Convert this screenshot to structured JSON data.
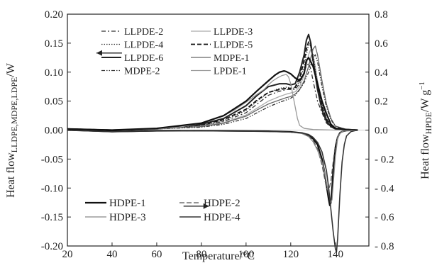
{
  "chart_data": {
    "type": "line",
    "xlabel": "Temperature/°C",
    "ylabel_left": {
      "main": "Heat flow",
      "sub": "LLDPE,MDPE,LDPE",
      "unit": "/W"
    },
    "ylabel_right": {
      "main": "Heat flow",
      "sub": "HPDE",
      "unit": "/W g",
      "sup": "−1"
    },
    "xlim": [
      20,
      155
    ],
    "ylim_left": [
      -0.2,
      0.2
    ],
    "ylim_right": [
      -0.8,
      0.8
    ],
    "x_ticks": [
      "20",
      "40",
      "60",
      "80",
      "100",
      "120",
      "140"
    ],
    "x_tick_values": [
      20,
      40,
      60,
      80,
      100,
      120,
      140
    ],
    "y_left_ticks": [
      "-0.20",
      "-0.15",
      "-0.10",
      "-0.05",
      "0.00",
      "0.05",
      "0.10",
      "0.15",
      "0.20"
    ],
    "y_left_tick_values": [
      -0.2,
      -0.15,
      -0.1,
      -0.05,
      0.0,
      0.05,
      0.1,
      0.15,
      0.2
    ],
    "y_right_ticks": [
      "- 0.8",
      "- 0.6",
      "- 0.4",
      "- 0.2",
      "0.0",
      "0.2",
      "0.4",
      "0.6",
      "0.8"
    ],
    "y_right_tick_values": [
      -0.8,
      -0.6,
      -0.4,
      -0.2,
      0.0,
      0.2,
      0.4,
      0.6,
      0.8
    ],
    "legend_top": [
      {
        "name": "LLPDE-2",
        "dash": "6,3,2,3",
        "color": "#333333",
        "width": 1.3
      },
      {
        "name": "LLPDE-3",
        "dash": "",
        "color": "#aaaaaa",
        "width": 1.3
      },
      {
        "name": "LLPDE-4",
        "dash": "1.5,2",
        "color": "#333333",
        "width": 1.3
      },
      {
        "name": "LLPDE-5",
        "dash": "6,3",
        "color": "#111111",
        "width": 1.8
      },
      {
        "name": "LLPDE-6",
        "dash": "",
        "color": "#222222",
        "width": 2.0
      },
      {
        "name": "MDPE-1",
        "dash": "",
        "color": "#666666",
        "width": 1.3
      },
      {
        "name": "MDPE-2",
        "dash": "5,2,1.5,2,1.5,2",
        "color": "#333333",
        "width": 1.3
      },
      {
        "name": "LPDE-1",
        "dash": "",
        "color": "#999999",
        "width": 1.3
      }
    ],
    "legend_bottom": [
      {
        "name": "HDPE-1",
        "dash": "",
        "color": "#111111",
        "width": 2.2
      },
      {
        "name": "HDPE-2",
        "dash": "7,3",
        "color": "#555555",
        "width": 1.3
      },
      {
        "name": "HDPE-3",
        "dash": "",
        "color": "#888888",
        "width": 1.3
      },
      {
        "name": "HDPE-4",
        "dash": "",
        "color": "#333333",
        "width": 1.6
      }
    ],
    "arrows": [
      {
        "x": 33,
        "y": 0.133,
        "direction": "left",
        "axis": "left"
      },
      {
        "x": 72,
        "y": -0.525,
        "direction": "right",
        "axis": "right"
      }
    ],
    "series": [
      {
        "name": "LLPDE-2",
        "axis": "left",
        "x": [
          20,
          40,
          60,
          80,
          90,
          100,
          105,
          110,
          115,
          118,
          120,
          122,
          124,
          126,
          127,
          128,
          129,
          130,
          132,
          134,
          136,
          138,
          140,
          142,
          145,
          150
        ],
        "y": [
          0.002,
          0,
          0.002,
          0.008,
          0.015,
          0.03,
          0.045,
          0.06,
          0.067,
          0.07,
          0.07,
          0.07,
          0.08,
          0.1,
          0.11,
          0.115,
          0.105,
          0.085,
          0.05,
          0.03,
          0.012,
          0.005,
          0.002,
          0.001,
          0,
          0
        ]
      },
      {
        "name": "LLPDE-3",
        "axis": "left",
        "x": [
          20,
          40,
          60,
          80,
          90,
          100,
          105,
          110,
          115,
          118,
          120,
          122,
          124,
          126,
          128,
          129,
          130,
          131,
          132,
          134,
          136,
          138,
          140,
          145,
          150
        ],
        "y": [
          0.002,
          0,
          0.002,
          0.007,
          0.013,
          0.026,
          0.038,
          0.05,
          0.058,
          0.062,
          0.064,
          0.066,
          0.075,
          0.095,
          0.13,
          0.14,
          0.13,
          0.11,
          0.085,
          0.045,
          0.02,
          0.008,
          0.003,
          0.001,
          0
        ]
      },
      {
        "name": "LLPDE-4",
        "axis": "left",
        "x": [
          20,
          40,
          60,
          80,
          90,
          100,
          105,
          110,
          115,
          118,
          120,
          122,
          124,
          126,
          128,
          129,
          130,
          132,
          134,
          136,
          138,
          140,
          145,
          150
        ],
        "y": [
          0.002,
          0,
          0.002,
          0.008,
          0.016,
          0.034,
          0.05,
          0.065,
          0.072,
          0.074,
          0.073,
          0.072,
          0.085,
          0.11,
          0.148,
          0.15,
          0.13,
          0.08,
          0.045,
          0.02,
          0.008,
          0.003,
          0.001,
          0
        ]
      },
      {
        "name": "LLPDE-5",
        "axis": "left",
        "x": [
          20,
          40,
          60,
          80,
          90,
          100,
          105,
          110,
          115,
          118,
          120,
          122,
          124,
          126,
          127,
          128,
          129,
          130,
          132,
          134,
          136,
          138,
          140,
          145,
          150
        ],
        "y": [
          0.002,
          0,
          0.002,
          0.009,
          0.018,
          0.036,
          0.052,
          0.065,
          0.07,
          0.072,
          0.072,
          0.074,
          0.09,
          0.12,
          0.14,
          0.152,
          0.145,
          0.12,
          0.075,
          0.04,
          0.018,
          0.007,
          0.003,
          0.001,
          0
        ]
      },
      {
        "name": "LLPDE-6",
        "axis": "left",
        "x": [
          20,
          40,
          60,
          80,
          90,
          100,
          105,
          110,
          115,
          118,
          120,
          122,
          124,
          126,
          127,
          128,
          129,
          130,
          132,
          134,
          136,
          138,
          140,
          145,
          150
        ],
        "y": [
          0.002,
          0,
          0.002,
          0.01,
          0.02,
          0.042,
          0.06,
          0.075,
          0.08,
          0.08,
          0.078,
          0.08,
          0.1,
          0.13,
          0.155,
          0.165,
          0.15,
          0.12,
          0.07,
          0.035,
          0.015,
          0.006,
          0.002,
          0.001,
          0
        ]
      },
      {
        "name": "MDPE-1",
        "axis": "left",
        "x": [
          20,
          40,
          60,
          80,
          90,
          100,
          105,
          110,
          115,
          118,
          120,
          122,
          124,
          126,
          128,
          130,
          131,
          132,
          134,
          136,
          138,
          140,
          145,
          150
        ],
        "y": [
          0.002,
          0,
          0.002,
          0.006,
          0.012,
          0.024,
          0.035,
          0.045,
          0.052,
          0.056,
          0.058,
          0.062,
          0.07,
          0.085,
          0.11,
          0.14,
          0.145,
          0.13,
          0.085,
          0.045,
          0.02,
          0.007,
          0.001,
          0
        ]
      },
      {
        "name": "MDPE-2",
        "axis": "left",
        "x": [
          20,
          40,
          60,
          80,
          90,
          100,
          105,
          110,
          115,
          118,
          120,
          122,
          124,
          126,
          128,
          130,
          131,
          132,
          134,
          136,
          138,
          140,
          145,
          150
        ],
        "y": [
          0.002,
          0,
          0.002,
          0.005,
          0.01,
          0.02,
          0.03,
          0.04,
          0.048,
          0.052,
          0.055,
          0.06,
          0.07,
          0.082,
          0.1,
          0.125,
          0.13,
          0.118,
          0.075,
          0.04,
          0.018,
          0.006,
          0.001,
          0
        ]
      },
      {
        "name": "LPDE-1",
        "axis": "left",
        "x": [
          20,
          40,
          60,
          70,
          80,
          90,
          95,
          100,
          105,
          108,
          110,
          112,
          114,
          116,
          118,
          119,
          120,
          121,
          122,
          123,
          124,
          126,
          130,
          140,
          150
        ],
        "y": [
          0.002,
          0,
          0.002,
          0.005,
          0.012,
          0.025,
          0.035,
          0.048,
          0.062,
          0.07,
          0.078,
          0.085,
          0.09,
          0.094,
          0.096,
          0.092,
          0.08,
          0.06,
          0.04,
          0.02,
          0.008,
          0.003,
          0.001,
          0,
          0
        ]
      },
      {
        "name": "HDPE-1",
        "axis": "left",
        "x": [
          20,
          40,
          60,
          80,
          90,
          100,
          105,
          110,
          113,
          115,
          117,
          118,
          120,
          122,
          124,
          126,
          127,
          128,
          130,
          132,
          134,
          136,
          138,
          140,
          145,
          150
        ],
        "y": [
          0.002,
          0,
          0.003,
          0.012,
          0.025,
          0.05,
          0.068,
          0.085,
          0.095,
          0.1,
          0.102,
          0.101,
          0.097,
          0.09,
          0.085,
          0.098,
          0.12,
          0.125,
          0.11,
          0.08,
          0.05,
          0.028,
          0.01,
          0.003,
          0.001,
          0
        ]
      },
      {
        "name": "HDPE-1",
        "axis": "right",
        "x": [
          20,
          40,
          60,
          80,
          100,
          110,
          120,
          125,
          128,
          130,
          132,
          134,
          135,
          136,
          137,
          137.5,
          138,
          138.5,
          139,
          140,
          141,
          142,
          143,
          145,
          150
        ],
        "y": [
          0,
          -0.01,
          -0.005,
          -0.004,
          -0.006,
          -0.008,
          -0.012,
          -0.02,
          -0.035,
          -0.06,
          -0.1,
          -0.2,
          -0.28,
          -0.38,
          -0.48,
          -0.52,
          -0.5,
          -0.4,
          -0.28,
          -0.12,
          -0.05,
          -0.02,
          -0.01,
          -0.003,
          0
        ]
      },
      {
        "name": "HDPE-2",
        "axis": "right",
        "x": [
          20,
          40,
          60,
          80,
          100,
          110,
          120,
          125,
          128,
          130,
          132,
          134,
          135,
          136,
          137,
          138,
          139,
          140,
          141,
          142,
          143,
          145,
          150
        ],
        "y": [
          0,
          -0.012,
          -0.006,
          -0.005,
          -0.007,
          -0.009,
          -0.014,
          -0.022,
          -0.04,
          -0.07,
          -0.13,
          -0.24,
          -0.32,
          -0.4,
          -0.42,
          -0.35,
          -0.22,
          -0.1,
          -0.045,
          -0.02,
          -0.01,
          -0.003,
          0
        ]
      },
      {
        "name": "HDPE-3",
        "axis": "right",
        "x": [
          20,
          40,
          60,
          80,
          100,
          110,
          120,
          125,
          128,
          130,
          132,
          134,
          135,
          136,
          137,
          138,
          138.5,
          139,
          140,
          141,
          142,
          143,
          145,
          150
        ],
        "y": [
          0,
          -0.012,
          -0.006,
          -0.005,
          -0.007,
          -0.009,
          -0.014,
          -0.024,
          -0.045,
          -0.08,
          -0.14,
          -0.22,
          -0.28,
          -0.36,
          -0.44,
          -0.5,
          -0.48,
          -0.38,
          -0.18,
          -0.06,
          -0.025,
          -0.01,
          -0.003,
          0
        ]
      },
      {
        "name": "HDPE-4",
        "axis": "right",
        "x": [
          20,
          40,
          60,
          80,
          100,
          110,
          120,
          125,
          128,
          130,
          132,
          134,
          136,
          137,
          138,
          139,
          140,
          140.5,
          141,
          142,
          143,
          144,
          145,
          147,
          150
        ],
        "y": [
          0,
          -0.012,
          -0.006,
          -0.005,
          -0.007,
          -0.009,
          -0.014,
          -0.02,
          -0.03,
          -0.05,
          -0.085,
          -0.15,
          -0.28,
          -0.4,
          -0.55,
          -0.7,
          -0.82,
          -0.84,
          -0.75,
          -0.45,
          -0.22,
          -0.1,
          -0.04,
          -0.01,
          0
        ]
      }
    ]
  }
}
